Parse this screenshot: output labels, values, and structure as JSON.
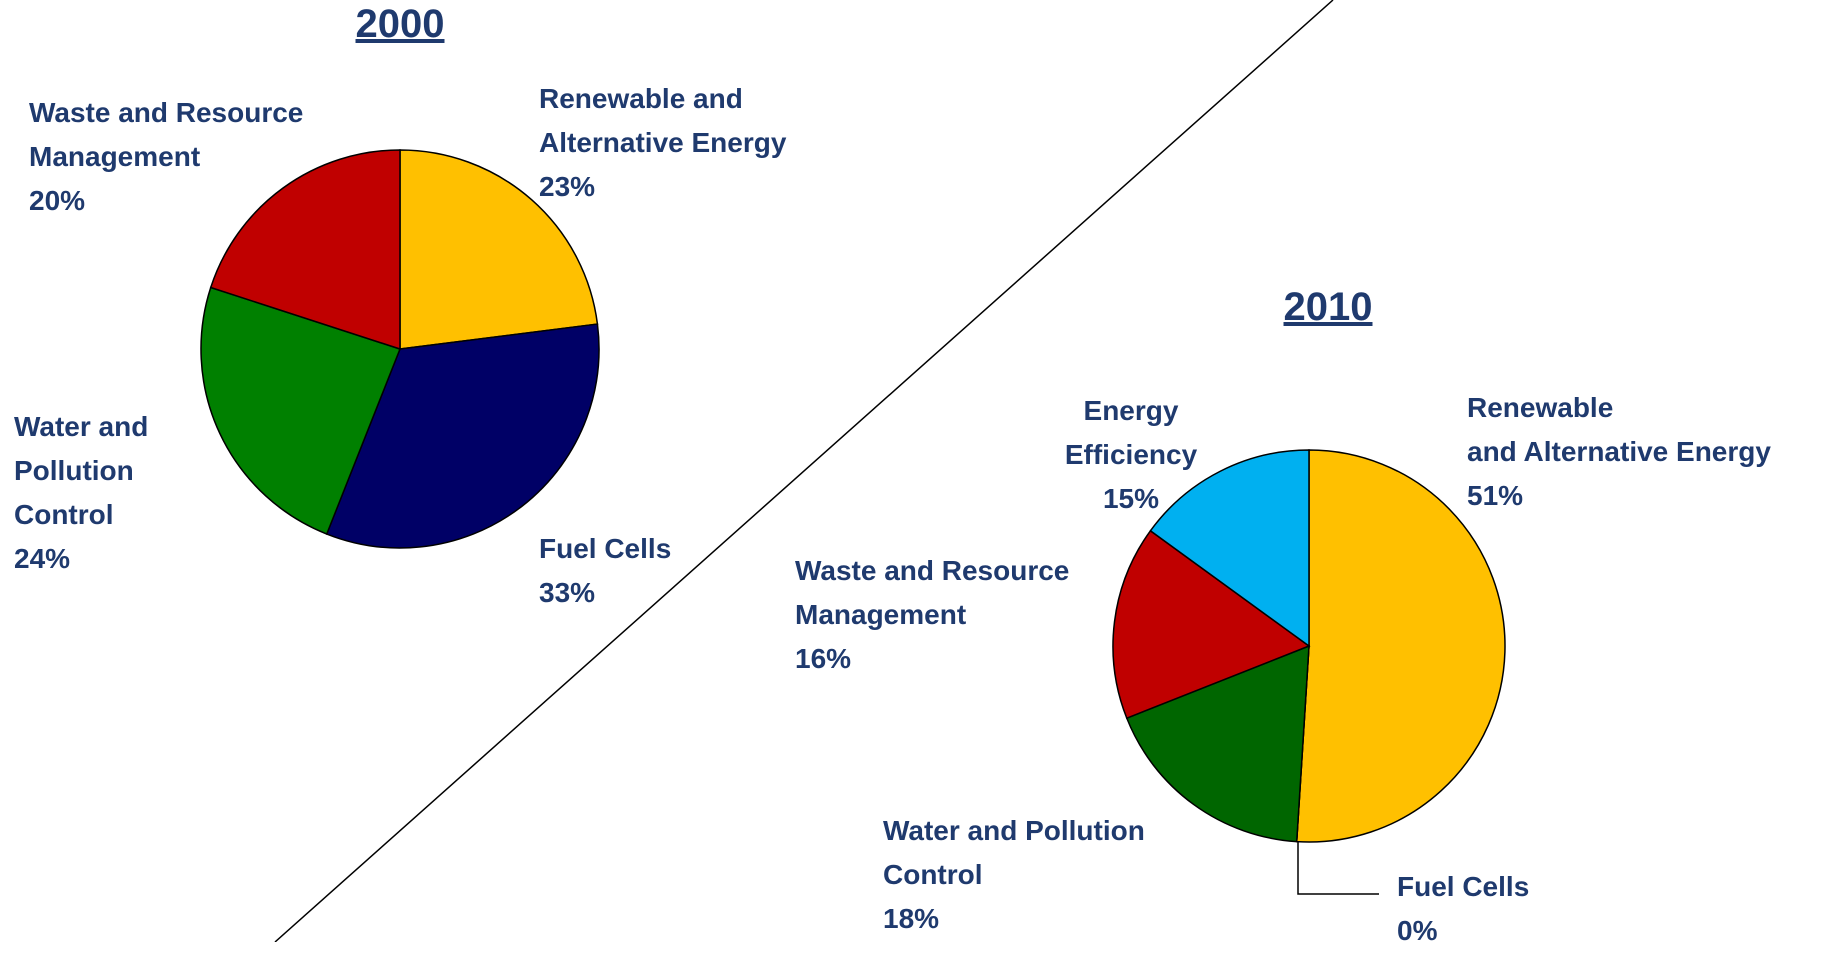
{
  "chart_data": [
    {
      "type": "pie",
      "title": "2000",
      "categories": [
        "Renewable and\nAlternative Energy",
        "Fuel Cells",
        "Water and\nPollution\nControl",
        "Waste and Resource\nManagement"
      ],
      "values": [
        23,
        33,
        24,
        20
      ],
      "value_labels": [
        "23%",
        "33%",
        "24%",
        "20%"
      ],
      "colors": [
        "#FFC000",
        "#000066",
        "#008000",
        "#C00000"
      ]
    },
    {
      "type": "pie",
      "title": "2010",
      "categories": [
        "Renewable\nand Alternative Energy",
        "Fuel Cells",
        "Water and Pollution\nControl",
        "Waste and Resource\nManagement",
        "Energy\nEfficiency"
      ],
      "values": [
        51,
        0,
        18,
        16,
        15
      ],
      "value_labels": [
        "51%",
        "0%",
        "18%",
        "16%",
        "15%"
      ],
      "colors": [
        "#FFC000",
        "#FFC000",
        "#006600",
        "#C00000",
        "#00B0F0"
      ]
    }
  ]
}
